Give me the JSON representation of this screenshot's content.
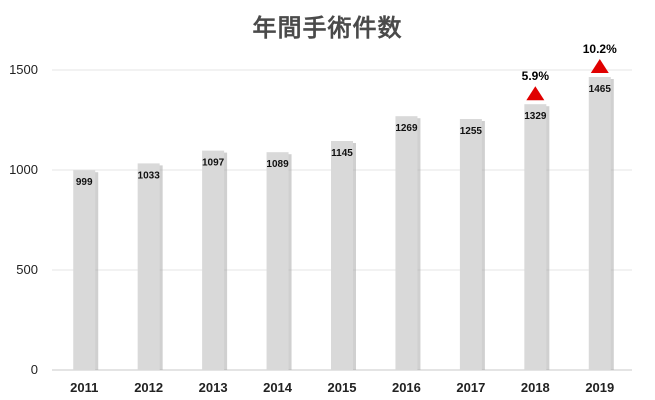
{
  "chart_data": {
    "type": "bar",
    "title": "年間手術件数",
    "categories": [
      "2011",
      "2012",
      "2013",
      "2014",
      "2015",
      "2016",
      "2017",
      "2018",
      "2019"
    ],
    "values": [
      999,
      1033,
      1097,
      1089,
      1145,
      1269,
      1255,
      1329,
      1465
    ],
    "data_labels": [
      "999",
      "1033",
      "1097",
      "1089",
      "1145",
      "1269",
      "1255",
      "1329",
      "1465"
    ],
    "yticks": [
      "0",
      "500",
      "1000",
      "1500"
    ],
    "ylim": [
      0,
      1500
    ],
    "grid": true,
    "annotations": [
      {
        "category": "2018",
        "text": "5.9%",
        "marker": "up-triangle"
      },
      {
        "category": "2019",
        "text": "10.2%",
        "marker": "up-triangle"
      }
    ],
    "colors": {
      "bar": "#d9d9d9",
      "bar_shadow": "#a9a9a9",
      "marker": "#e00000",
      "grid": "#e6e6e6"
    }
  }
}
